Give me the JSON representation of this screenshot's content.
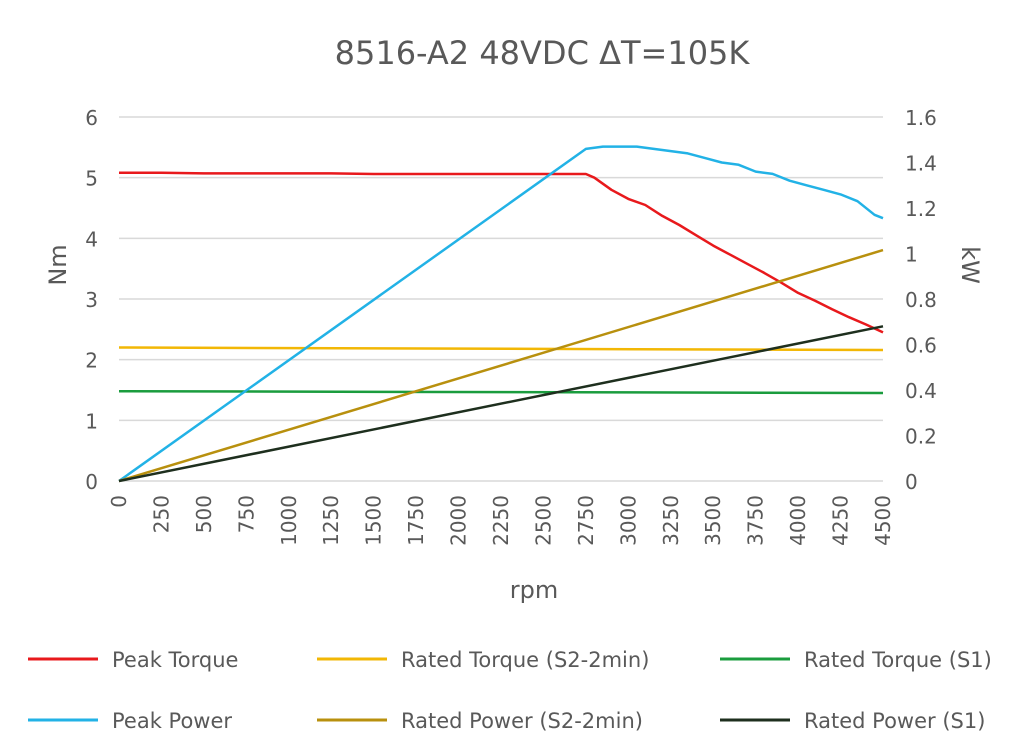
{
  "chart_data": {
    "type": "line",
    "title": "8516-A2 48VDC ΔT=105K",
    "xlabel": "rpm",
    "ylabel": "Nm",
    "y2label": "kW",
    "xlim": [
      0,
      4500
    ],
    "ylim": [
      0,
      6
    ],
    "y2lim": [
      0,
      1.6
    ],
    "x_ticks": [
      "0",
      "250",
      "500",
      "750",
      "1000",
      "1250",
      "1500",
      "1750",
      "2000",
      "2250",
      "2500",
      "2750",
      "3000",
      "3250",
      "3500",
      "3750",
      "4000",
      "4250",
      "4500"
    ],
    "y_ticks": [
      "0",
      "1",
      "2",
      "3",
      "4",
      "5",
      "6"
    ],
    "y2_ticks": [
      "0",
      "0.2",
      "0.4",
      "0.6",
      "0.8",
      "1",
      "1.2",
      "1.4",
      "1.6"
    ],
    "grid": true,
    "legend_position": "bottom",
    "series": [
      {
        "name": "Peak Torque",
        "axis": "left",
        "color": "#e8191c",
        "x": [
          0,
          250,
          500,
          750,
          1000,
          1250,
          1500,
          1750,
          2000,
          2250,
          2500,
          2750,
          2800,
          2900,
          3000,
          3100,
          3200,
          3300,
          3400,
          3500,
          3600,
          3700,
          3800,
          3900,
          4000,
          4100,
          4200,
          4300,
          4400,
          4500
        ],
        "values": [
          5.08,
          5.08,
          5.07,
          5.07,
          5.07,
          5.07,
          5.06,
          5.06,
          5.06,
          5.06,
          5.06,
          5.06,
          5.0,
          4.8,
          4.65,
          4.55,
          4.37,
          4.22,
          4.05,
          3.88,
          3.73,
          3.58,
          3.43,
          3.27,
          3.1,
          2.97,
          2.83,
          2.7,
          2.58,
          2.45
        ]
      },
      {
        "name": "Rated Torque (S2-2min)",
        "axis": "left",
        "color": "#f2b705",
        "x": [
          0,
          4500
        ],
        "values": [
          2.2,
          2.16
        ]
      },
      {
        "name": "Rated Torque (S1)",
        "axis": "left",
        "color": "#1a9c3e",
        "x": [
          0,
          4500
        ],
        "values": [
          1.48,
          1.45
        ]
      },
      {
        "name": "Peak Power",
        "axis": "right",
        "color": "#22b2e6",
        "x": [
          0,
          2750,
          2850,
          2950,
          3050,
          3150,
          3250,
          3350,
          3450,
          3550,
          3650,
          3750,
          3850,
          3950,
          4050,
          4150,
          4250,
          4350,
          4450,
          4500
        ],
        "values": [
          0,
          1.46,
          1.47,
          1.47,
          1.47,
          1.46,
          1.45,
          1.44,
          1.42,
          1.4,
          1.39,
          1.36,
          1.35,
          1.32,
          1.3,
          1.28,
          1.26,
          1.23,
          1.17,
          1.155
        ]
      },
      {
        "name": "Rated Power (S2-2min)",
        "axis": "right",
        "color": "#b8900e",
        "x": [
          0,
          4500
        ],
        "values": [
          0,
          1.015
        ]
      },
      {
        "name": "Rated Power (S1)",
        "axis": "right",
        "color": "#1e2f1e",
        "x": [
          0,
          4500
        ],
        "values": [
          0,
          0.68
        ]
      }
    ]
  }
}
